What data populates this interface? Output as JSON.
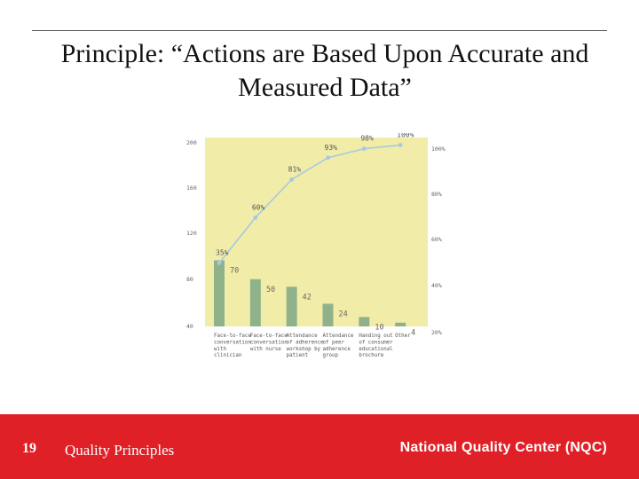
{
  "slide": {
    "title": "Principle: “Actions are Based Upon Accurate and Measured Data”",
    "number": "19",
    "footer_label": "Quality Principles",
    "organization": "National Quality Center (NQC)"
  },
  "colors": {
    "footer_bg": "#e02027",
    "plot_bg": "#f1eda9",
    "bar": "#8fb28b",
    "line": "#a7c8e2"
  },
  "chart_data": {
    "type": "bar",
    "categories": [
      "Face-to-face conversation with clinician",
      "Face-to-face conversation with nurse",
      "Attendance of adherence workshop by patient",
      "Attendance of peer adherence group",
      "Handing out of consumer educational brochure",
      "Other"
    ],
    "values": [
      70,
      50,
      42,
      24,
      10,
      4
    ],
    "value_labels": [
      "70",
      "50",
      "42",
      "24",
      "10",
      "4"
    ],
    "cumulative_percent": [
      35,
      60,
      81,
      93,
      98,
      100
    ],
    "cumulative_labels": [
      "35%",
      "60%",
      "81%",
      "93%",
      "98%",
      "100%"
    ],
    "ylim": [
      0,
      200
    ],
    "y_ticks": [
      "200",
      "160",
      "120",
      "80",
      "40"
    ],
    "y2_ticks": [
      "100%",
      "80%",
      "60%",
      "40%",
      "20%"
    ],
    "xlabel": "",
    "ylabel": ""
  }
}
